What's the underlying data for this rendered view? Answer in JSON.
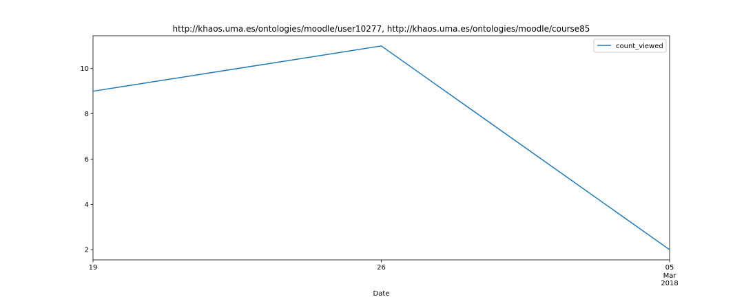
{
  "chart_data": {
    "type": "line",
    "title": "http://khaos.uma.es/ontologies/moodle/user10277, http://khaos.uma.es/ontologies/moodle/course85",
    "xlabel": "Date",
    "ylabel": "",
    "x": [
      "2018-02-19",
      "2018-02-26",
      "2018-03-05"
    ],
    "series": [
      {
        "name": "count_viewed",
        "values": [
          9,
          11,
          2
        ],
        "color": "#1f77b4"
      }
    ],
    "xticks": [
      {
        "x": "2018-02-19",
        "label": "19",
        "sub": []
      },
      {
        "x": "2018-02-26",
        "label": "26",
        "sub": []
      },
      {
        "x": "2018-03-05",
        "label": "05",
        "sub": [
          "Mar",
          "2018"
        ]
      }
    ],
    "yticks": [
      2,
      4,
      6,
      8,
      10
    ],
    "ylim": [
      1.55,
      11.45
    ],
    "grid": false,
    "legend": "top-right"
  }
}
